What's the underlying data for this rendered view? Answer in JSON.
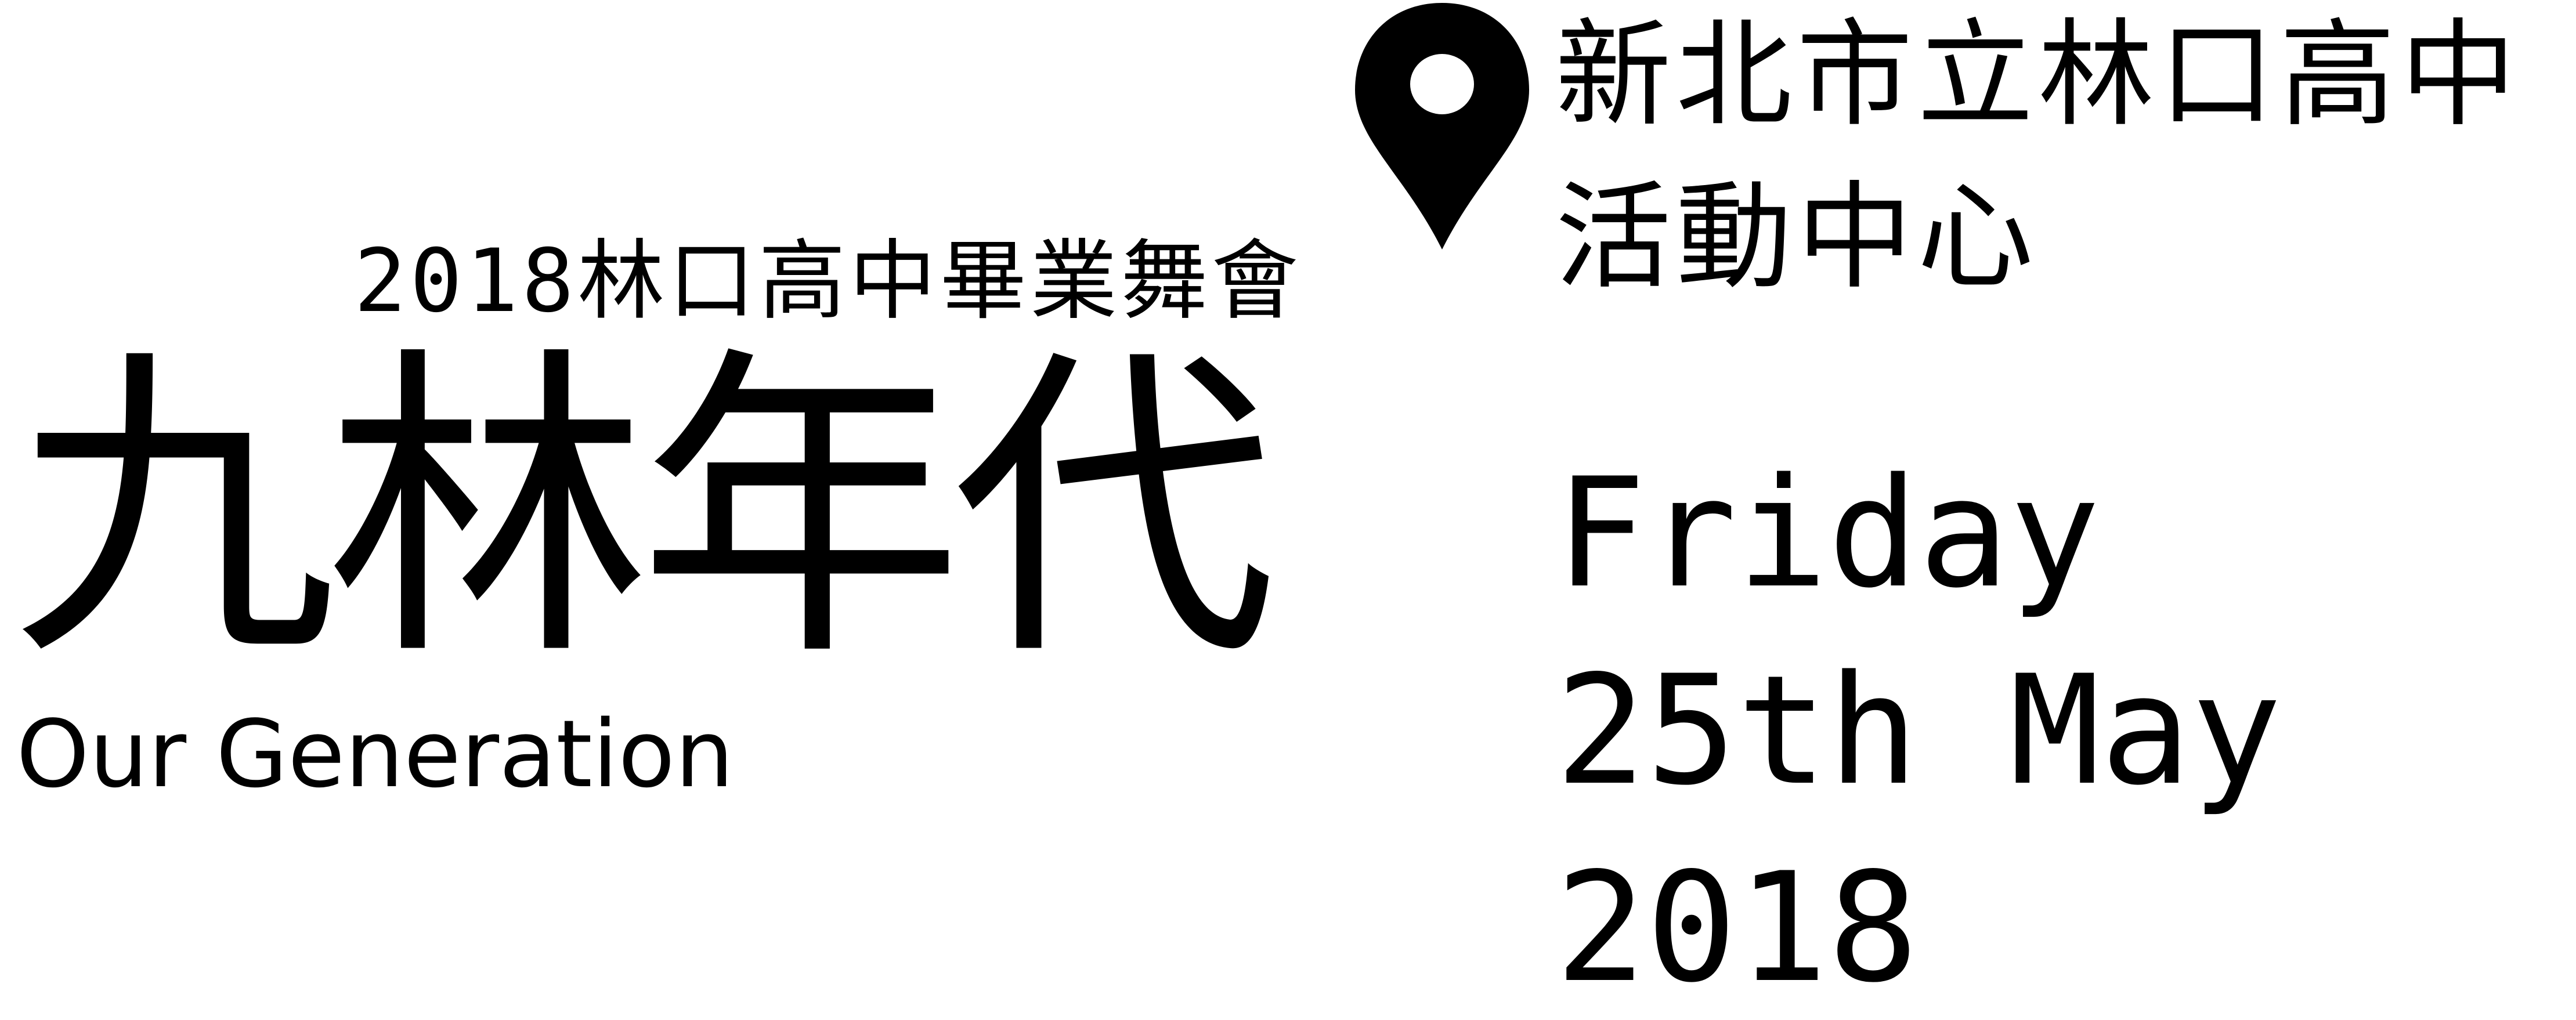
{
  "event": {
    "subtitle": "2018林口高中畢業舞會",
    "title": "九林年代",
    "english_title": "Our Generation"
  },
  "venue": {
    "line1": "新北市立林口高中",
    "line2": "活動中心",
    "icon": "map-pin-icon"
  },
  "date": {
    "weekday": "Friday",
    "day_month": "25th May",
    "year": "2018"
  }
}
